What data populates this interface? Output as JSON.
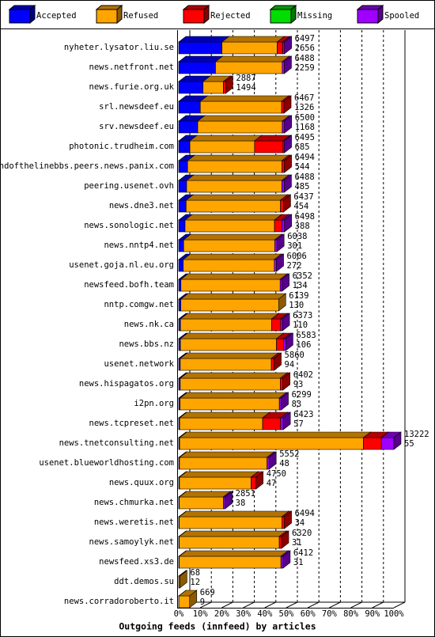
{
  "chart_data": {
    "type": "bar3d",
    "orientation": "horizontal",
    "stacked": true,
    "x_label": "Outgoing feeds (innfeed) by articles",
    "categories": [
      "nyheter.lysator.liu.se",
      "news.netfront.net",
      "news.furie.org.uk",
      "srl.newsdeef.eu",
      "srv.newsdeef.eu",
      "photonic.trudheim.com",
      "endofthelinebbs.peers.news.panix.com",
      "peering.usenet.ovh",
      "news.dne3.net",
      "news.sonologic.net",
      "news.nntp4.net",
      "usenet.goja.nl.eu.org",
      "newsfeed.bofh.team",
      "nntp.comgw.net",
      "news.nk.ca",
      "news.bbs.nz",
      "usenet.network",
      "news.hispagatos.org",
      "i2pn.org",
      "news.tcpreset.net",
      "news.tnetconsulting.net",
      "usenet.blueworldhosting.com",
      "news.quux.org",
      "news.chmurka.net",
      "news.weretis.net",
      "news.samoylyk.net",
      "newsfeed.xs3.de",
      "ddt.demos.su",
      "news.corradoroberto.it"
    ],
    "totals": [
      6497,
      6488,
      2887,
      6467,
      6500,
      6495,
      6494,
      6488,
      6437,
      6498,
      6038,
      6006,
      6352,
      6139,
      6373,
      6583,
      5860,
      6402,
      6299,
      6423,
      13222,
      5552,
      4750,
      2851,
      6494,
      6320,
      6412,
      68,
      669
    ],
    "series": [
      {
        "name": "Accepted",
        "color": "#0000ff",
        "values": [
          2656,
          2259,
          1494,
          1326,
          1168,
          685,
          544,
          485,
          454,
          388,
          301,
          272,
          134,
          130,
          110,
          106,
          94,
          93,
          83,
          57,
          55,
          48,
          47,
          38,
          34,
          31,
          31,
          12,
          9
        ]
      },
      {
        "name": "Refused",
        "color": "#ffa500",
        "values": [
          3400,
          4100,
          1250,
          5000,
          5200,
          3980,
          5800,
          5860,
          5800,
          5500,
          5600,
          5600,
          6100,
          6009,
          5600,
          5900,
          5600,
          6150,
          6100,
          5100,
          11300,
          5380,
          4400,
          2700,
          6300,
          6150,
          6250,
          56,
          660
        ]
      },
      {
        "name": "Rejected",
        "color": "#ff0000",
        "values": [
          340,
          0,
          143,
          141,
          0,
          1750,
          150,
          0,
          183,
          450,
          0,
          0,
          0,
          0,
          550,
          450,
          166,
          159,
          0,
          1100,
          1100,
          0,
          303,
          0,
          160,
          139,
          0,
          0,
          0
        ]
      },
      {
        "name": "Missing",
        "color": "#00dd00",
        "values": [
          0,
          0,
          0,
          0,
          0,
          0,
          0,
          0,
          0,
          0,
          0,
          0,
          0,
          0,
          0,
          0,
          0,
          0,
          0,
          0,
          0,
          0,
          0,
          0,
          0,
          0,
          0,
          0,
          0
        ]
      },
      {
        "name": "Spooled",
        "color": "#a000ff",
        "values": [
          101,
          129,
          0,
          0,
          132,
          80,
          0,
          143,
          0,
          160,
          137,
          134,
          118,
          0,
          113,
          127,
          0,
          0,
          116,
          166,
          767,
          124,
          0,
          113,
          0,
          0,
          131,
          0,
          0
        ]
      }
    ],
    "xlim": [
      0,
      13222
    ],
    "xticks": [
      {
        "value": 0,
        "label": "0%"
      },
      {
        "value": 1322.2,
        "label": "10%"
      },
      {
        "value": 2644.4,
        "label": "20%"
      },
      {
        "value": 3966.6,
        "label": "30%"
      },
      {
        "value": 5288.8,
        "label": "40%"
      },
      {
        "value": 6611,
        "label": "50%"
      },
      {
        "value": 7933.2,
        "label": "60%"
      },
      {
        "value": 9255.4,
        "label": "70%"
      },
      {
        "value": 10577.6,
        "label": "80%"
      },
      {
        "value": 11899.8,
        "label": "90%"
      },
      {
        "value": 13222,
        "label": "100%"
      }
    ],
    "grid": true
  }
}
